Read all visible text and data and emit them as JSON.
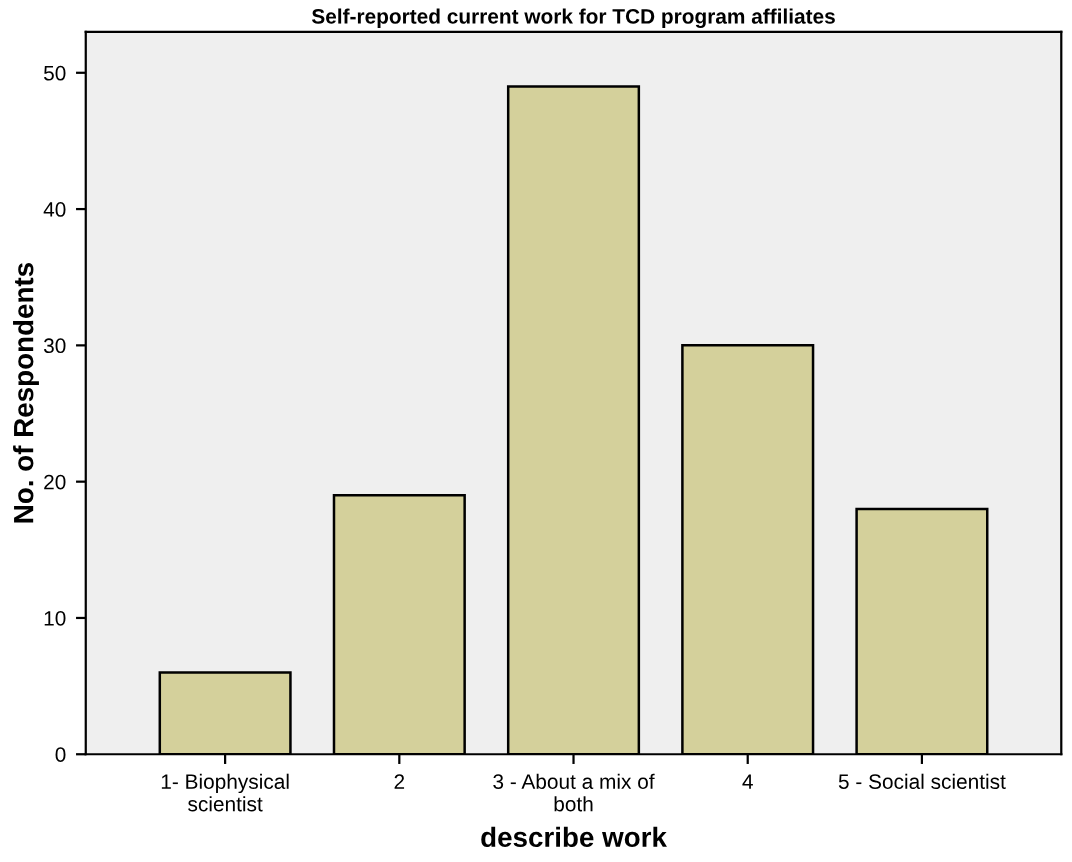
{
  "chart_data": {
    "type": "bar",
    "title": "Self-reported current work for TCD program affiliates",
    "xlabel": "describe work",
    "ylabel": "No. of Respondents",
    "categories": [
      "1- Biophysical\nscientist",
      "2",
      "3 - About a mix of\nboth",
      "4",
      "5 - Social scientist"
    ],
    "values": [
      6,
      19,
      49,
      30,
      18
    ],
    "color": "#d4d09b",
    "ylim": [
      0,
      53
    ],
    "yticks": [
      0,
      10,
      20,
      30,
      40,
      50
    ],
    "grid": false
  }
}
